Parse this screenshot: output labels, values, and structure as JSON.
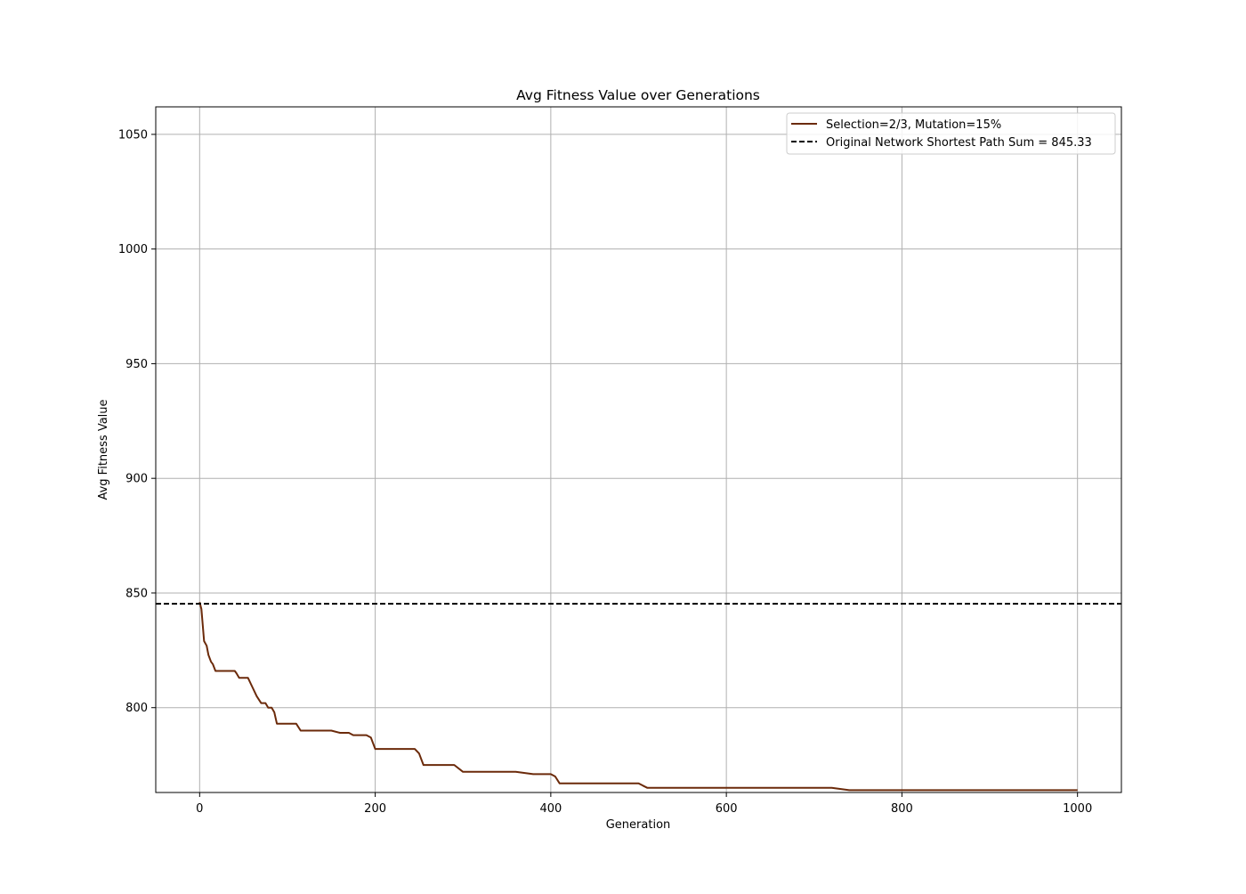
{
  "chart_data": {
    "type": "line",
    "title": "Avg Fitness Value over Generations",
    "xlabel": "Generation",
    "ylabel": "Avg Fitness Value",
    "xlim": [
      -50,
      1050
    ],
    "ylim": [
      763,
      1062
    ],
    "xticks": [
      0,
      200,
      400,
      600,
      800,
      1000
    ],
    "yticks": [
      800,
      850,
      900,
      950,
      1000,
      1050
    ],
    "grid": true,
    "legend_position": "top-right",
    "series": [
      {
        "name": "Selection=2/3, Mutation=15%",
        "color": "#6b2a0a",
        "style": "solid",
        "x": [
          0,
          2,
          5,
          8,
          10,
          13,
          15,
          18,
          20,
          25,
          30,
          35,
          40,
          42,
          45,
          50,
          55,
          60,
          65,
          70,
          75,
          78,
          82,
          85,
          88,
          92,
          95,
          100,
          110,
          115,
          120,
          130,
          140,
          150,
          160,
          170,
          175,
          180,
          190,
          195,
          200,
          210,
          220,
          240,
          245,
          250,
          255,
          260,
          270,
          280,
          285,
          290,
          300,
          310,
          320,
          340,
          360,
          380,
          390,
          400,
          405,
          410,
          420,
          440,
          460,
          480,
          490,
          500,
          505,
          510,
          520,
          540,
          560,
          580,
          600,
          620,
          625,
          640,
          660,
          680,
          700,
          720,
          740,
          760,
          780,
          800,
          820,
          840,
          860,
          880,
          900,
          920,
          940,
          960,
          980,
          1000
        ],
        "y": [
          846,
          843,
          829,
          827,
          823,
          820,
          819,
          816,
          816,
          816,
          816,
          816,
          816,
          815,
          813,
          813,
          813,
          809,
          805,
          802,
          802,
          800,
          800,
          798,
          793,
          793,
          793,
          793,
          793,
          790,
          790,
          790,
          790,
          790,
          789,
          789,
          788,
          788,
          788,
          787,
          782,
          782,
          782,
          782,
          782,
          780,
          775,
          775,
          775,
          775,
          775,
          775,
          772,
          772,
          772,
          772,
          772,
          771,
          771,
          771,
          770,
          767,
          767,
          767,
          767,
          767,
          767,
          767,
          766,
          765,
          765,
          765,
          765,
          765,
          765,
          765,
          765,
          765,
          765,
          765,
          765,
          765,
          764,
          764,
          764,
          764,
          764,
          764,
          764,
          764,
          764,
          764,
          764,
          764,
          764,
          764
        ]
      },
      {
        "name": "Original Network Shortest Path Sum = 845.33",
        "color": "#000000",
        "style": "dashed",
        "y_constant": 845.33
      }
    ]
  }
}
